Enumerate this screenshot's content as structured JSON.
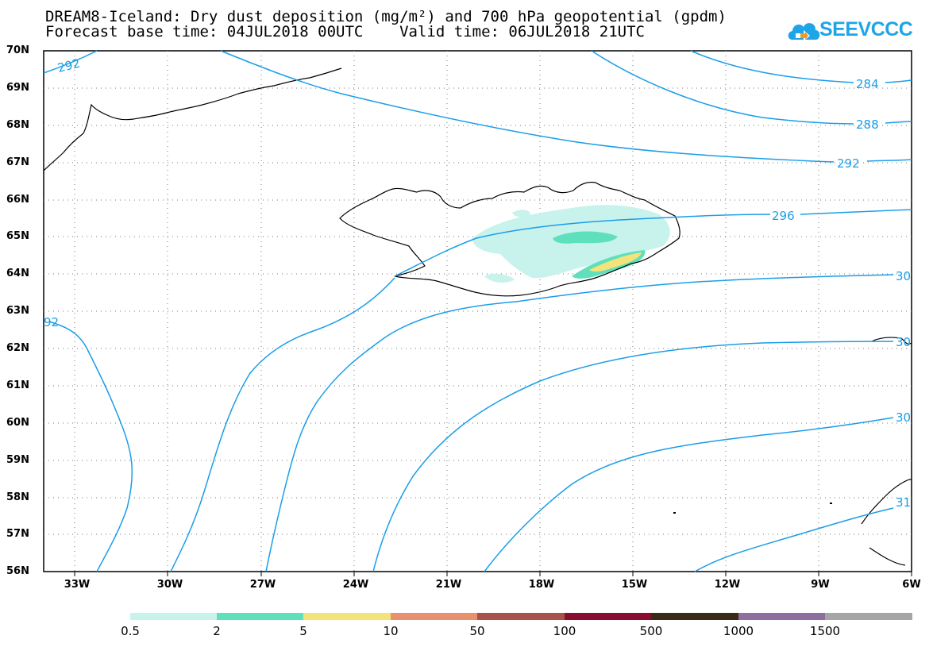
{
  "title": {
    "line1": "DREAM8-Iceland: Dry dust deposition (mg/m²) and 700 hPa geopotential (gpdm)",
    "line2": "Forecast base time: 04JUL2018 00UTC    Valid time: 06JUL2018 21UTC"
  },
  "logo": {
    "text": "SEEVCCC",
    "icon": "cloud-logo-icon",
    "color": "#1ea5e8"
  },
  "map": {
    "projection": "lat-lon",
    "lat_range": [
      56,
      70
    ],
    "lon_range": [
      -34.3,
      -6
    ],
    "lat_labels": [
      "70N",
      "69N",
      "68N",
      "67N",
      "66N",
      "65N",
      "64N",
      "63N",
      "62N",
      "61N",
      "60N",
      "59N",
      "58N",
      "57N",
      "56N"
    ],
    "lon_labels": [
      "33W",
      "30W",
      "27W",
      "24W",
      "21W",
      "18W",
      "15W",
      "12W",
      "9W",
      "6W"
    ],
    "contour_color": "#1a9ee8",
    "contour_labels": [
      "292",
      "284",
      "288",
      "292",
      "296",
      "30",
      "92",
      "30",
      "30",
      "31"
    ]
  },
  "colorbar": {
    "labels": [
      "0.5",
      "2",
      "5",
      "10",
      "50",
      "100",
      "500",
      "1000",
      "1500"
    ],
    "colors": [
      "#c8f2ec",
      "#5ee0bd",
      "#f4e27a",
      "#e8916c",
      "#a9524a",
      "#8a0c2e",
      "#3a2a1a",
      "#8e6fa0",
      "#a6a6a6"
    ]
  }
}
